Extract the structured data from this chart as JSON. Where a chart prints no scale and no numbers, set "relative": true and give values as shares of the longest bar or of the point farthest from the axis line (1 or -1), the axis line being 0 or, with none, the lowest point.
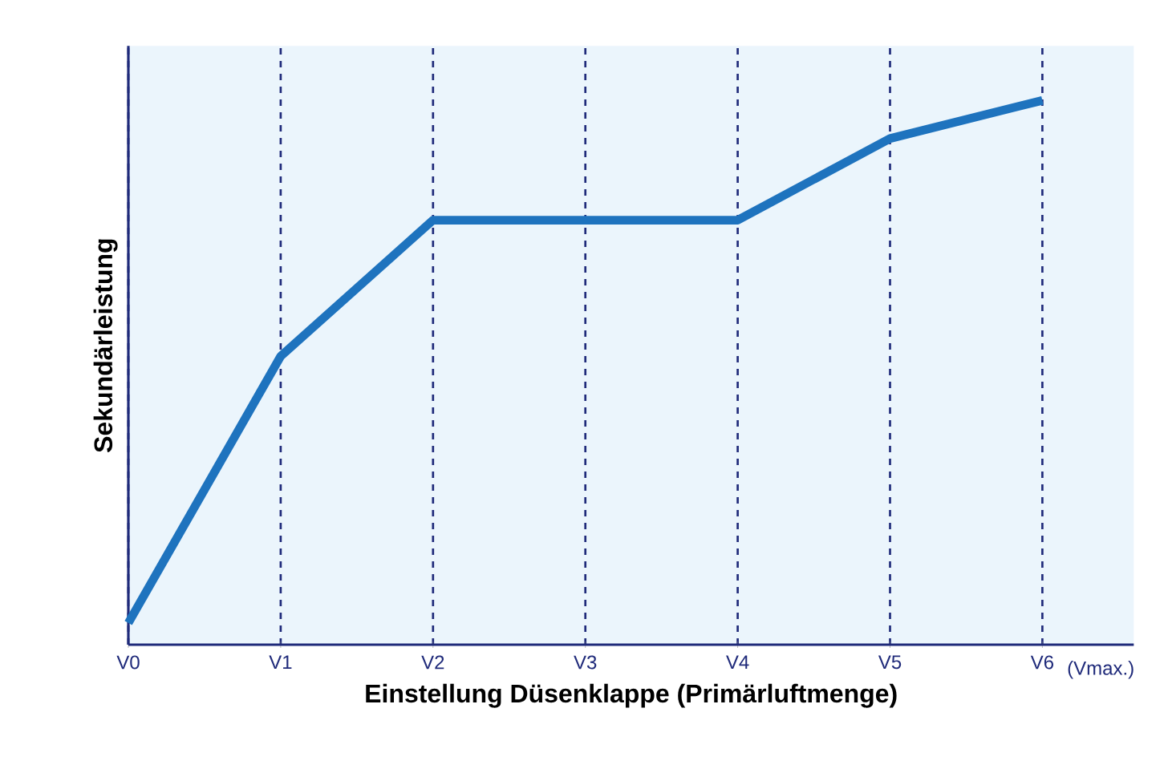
{
  "chart_data": {
    "type": "line",
    "relative": true,
    "xlabel": "Einstellung Düsenklappe (Primärluftmenge)",
    "ylabel": "Sekundärleistung",
    "categories": [
      "V0",
      "V1",
      "V2",
      "V3",
      "V4",
      "V5",
      "V6"
    ],
    "series": [
      {
        "color": "#1e73be",
        "values": [
          0.04,
          0.53,
          0.78,
          0.78,
          0.78,
          0.93,
          1
        ]
      }
    ],
    "grid": "x",
    "line_style": "solid",
    "annotations": [
      "(Vmax.)"
    ]
  }
}
